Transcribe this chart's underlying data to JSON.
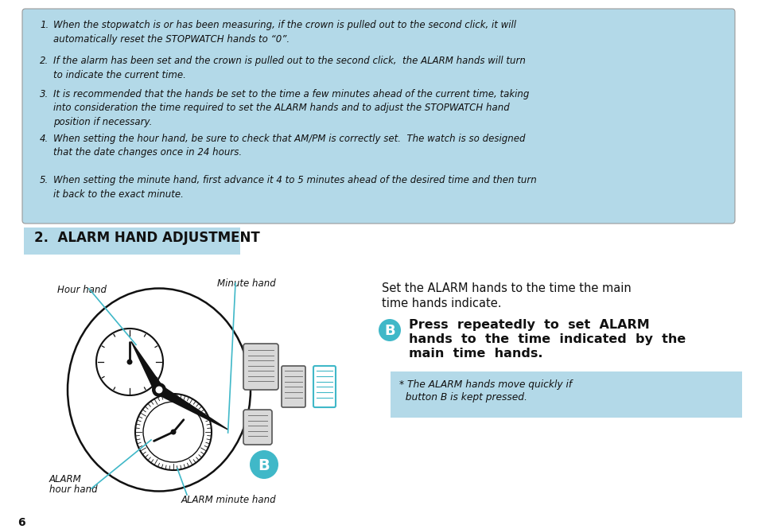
{
  "bg_color": "#ffffff",
  "light_blue": "#b3d9e8",
  "cyan": "#40b8c8",
  "black": "#111111",
  "items": [
    [
      "1.",
      "When the stopwatch is or has been measuring, if the crown is pulled out to the second click, it will\nautomatically reset the STOPWATCH hands to “0”."
    ],
    [
      "2.",
      "If the alarm has been set and the crown is pulled out to the second click,  the ALARM hands will turn\nto indicate the current time."
    ],
    [
      "3.",
      "It is recommended that the hands be set to the time a few minutes ahead of the current time, taking\ninto consideration the time required to set the ALARM hands and to adjust the STOPWATCH hand\nposition if necessary."
    ],
    [
      "4.",
      "When setting the hour hand, be sure to check that AM/PM is correctly set.  The watch is so designed\nthat the date changes once in 24 hours."
    ],
    [
      "5.",
      "When setting the minute hand, first advance it 4 to 5 minutes ahead of the desired time and then turn\nit back to the exact minute."
    ]
  ],
  "section_header": "2.  ALARM HAND ADJUSTMENT",
  "right_text1_line1": "Set the ALARM hands to the time the main",
  "right_text1_line2": "time hands indicate.",
  "right_text2_line1": "Press  repeatedly  to  set  ALARM",
  "right_text2_line2": "hands  to  the  time  indicated  by  the",
  "right_text2_line3": "main  time  hands.",
  "note_text_line1": "* The ALARM hands move quickly if",
  "note_text_line2": "  button B is kept pressed.",
  "page_number": "6",
  "label_hour_hand": "Hour hand",
  "label_minute_hand": "Minute hand",
  "label_alarm_hour_line1": "ALARM",
  "label_alarm_hour_line2": "hour hand",
  "label_alarm_minute": "ALARM minute hand"
}
